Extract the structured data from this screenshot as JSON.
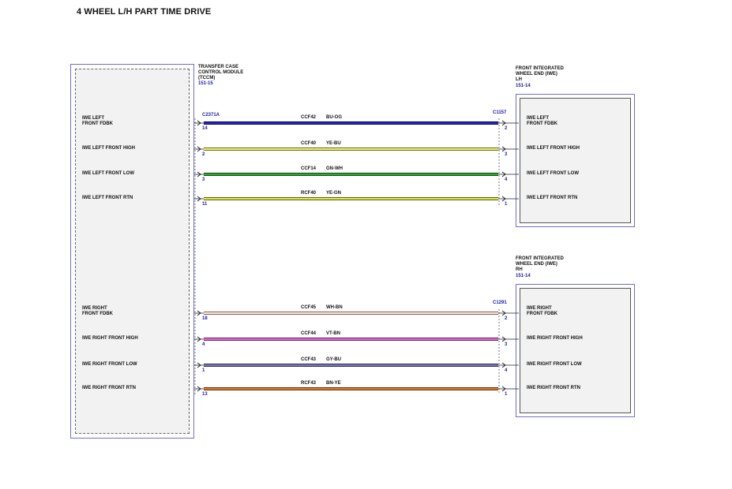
{
  "title": "4 WHEEL L/H PART TIME DRIVE",
  "tccm": {
    "name_lines": [
      "TRANSFER CASE",
      "CONTROL MODULE",
      "(TCCM)"
    ],
    "ref": "151-15",
    "connector": "C2371A"
  },
  "iwe_lh": {
    "name_lines": [
      "FRONT INTEGRATED",
      "WHEEL END (IWE)",
      "LH"
    ],
    "ref": "151-14",
    "connector": "C1157"
  },
  "iwe_rh": {
    "name_lines": [
      "FRONT INTEGRATED",
      "WHEEL END (IWE)",
      "RH"
    ],
    "ref": "151-14",
    "connector": "C1291"
  },
  "wires": [
    {
      "left_label": [
        "IWE LEFT",
        "FRONT FDBK"
      ],
      "right_label": [
        "IWE LEFT",
        "FRONT FDBK"
      ],
      "left_pin": "14",
      "right_pin": "2",
      "circuit": "CCF42",
      "color_code": "BU-OG",
      "stroke": "#2a2ac8",
      "edge": "#000055"
    },
    {
      "left_label": [
        "IWE LEFT FRONT HIGH"
      ],
      "right_label": [
        "IWE LEFT FRONT HIGH"
      ],
      "left_pin": "2",
      "right_pin": "3",
      "circuit": "CCF40",
      "color_code": "YE-BU",
      "stroke": "#f2f27a",
      "edge": "#6a6a10"
    },
    {
      "left_label": [
        "IWE LEFT FRONT LOW"
      ],
      "right_label": [
        "IWE LEFT FRONT LOW"
      ],
      "left_pin": "3",
      "right_pin": "4",
      "circuit": "CCF14",
      "color_code": "GN-WH",
      "stroke": "#2ea82e",
      "edge": "#0d4d0d"
    },
    {
      "left_label": [
        "IWE LEFT FRONT RTN"
      ],
      "right_label": [
        "IWE LEFT FRONT RTN"
      ],
      "left_pin": "11",
      "right_pin": "1",
      "circuit": "RCF40",
      "color_code": "YE-GN",
      "stroke": "#e2ea4a",
      "edge": "#5a6010"
    },
    {
      "left_label": [
        "IWE RIGHT",
        "FRONT FDBK"
      ],
      "right_label": [
        "IWE RIGHT",
        "FRONT FDBK"
      ],
      "left_pin": "18",
      "right_pin": "2",
      "circuit": "CCF45",
      "color_code": "WH-BN",
      "stroke": "#f6eeea",
      "edge": "#8a5a4a"
    },
    {
      "left_label": [
        "IWE RIGHT FRONT HIGH"
      ],
      "right_label": [
        "IWE RIGHT FRONT HIGH"
      ],
      "left_pin": "4",
      "right_pin": "3",
      "circuit": "CCF44",
      "color_code": "VT-BN",
      "stroke": "#e070d0",
      "edge": "#6a2060"
    },
    {
      "left_label": [
        "IWE RIGHT FRONT LOW"
      ],
      "right_label": [
        "IWE RIGHT FRONT LOW"
      ],
      "left_pin": "1",
      "right_pin": "4",
      "circuit": "CCF43",
      "color_code": "GY-BU",
      "stroke": "#7a7ab8",
      "edge": "#2a2a55"
    },
    {
      "left_label": [
        "IWE RIGHT FRONT RTN"
      ],
      "right_label": [
        "IWE RIGHT FRONT RTN"
      ],
      "left_pin": "13",
      "right_pin": "1",
      "circuit": "RCF43",
      "color_code": "BN-YE",
      "stroke": "#e07a30",
      "edge": "#6a3008"
    }
  ]
}
